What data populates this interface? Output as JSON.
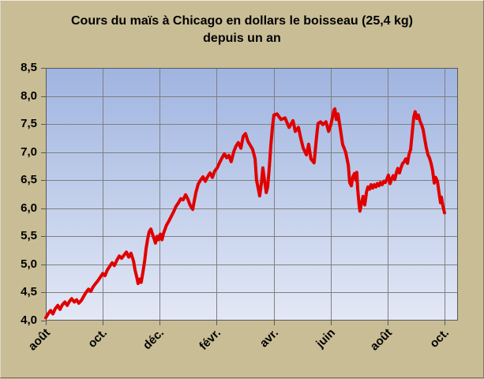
{
  "chart_data": {
    "type": "line",
    "title": "Cours du maïs à Chicago en dollars le boisseau (25,4 kg) depuis un an",
    "xlabel": "",
    "ylabel": "",
    "x_unit": "mois depuis le début (août = 0)",
    "xlim": [
      0,
      14.5
    ],
    "ylim": [
      4.0,
      8.5
    ],
    "grid": true,
    "legend": "none",
    "x_ticks": {
      "positions": [
        0,
        2,
        4,
        6,
        8,
        10,
        12,
        14
      ],
      "labels": [
        "août",
        "oct.",
        "déc.",
        "févr.",
        "avr.",
        "juin",
        "août",
        "oct."
      ]
    },
    "y_ticks": {
      "positions": [
        8.5,
        8.0,
        7.5,
        7.0,
        6.5,
        6.0,
        5.5,
        5.0,
        4.5,
        4.0
      ],
      "labels": [
        "8,5",
        "8,0",
        "7,5",
        "7,0",
        "6,5",
        "6,0",
        "5,5",
        "5,0",
        "4,5",
        "4,0"
      ]
    },
    "colors": {
      "background": "#c9bd96",
      "plot_gradient_top": "#9fb4e0",
      "plot_gradient_bottom": "#e3e8f5",
      "gridline": "#7f7f7f",
      "plot_border": "#595959",
      "line": "#e00000",
      "text": "#000000"
    },
    "series": [
      {
        "color": "#e00000",
        "points": [
          [
            0.0,
            4.05
          ],
          [
            0.08,
            4.12
          ],
          [
            0.17,
            4.18
          ],
          [
            0.25,
            4.12
          ],
          [
            0.33,
            4.21
          ],
          [
            0.42,
            4.27
          ],
          [
            0.5,
            4.2
          ],
          [
            0.58,
            4.28
          ],
          [
            0.67,
            4.33
          ],
          [
            0.75,
            4.27
          ],
          [
            0.83,
            4.34
          ],
          [
            0.91,
            4.39
          ],
          [
            1.0,
            4.33
          ],
          [
            1.08,
            4.37
          ],
          [
            1.16,
            4.31
          ],
          [
            1.25,
            4.36
          ],
          [
            1.33,
            4.43
          ],
          [
            1.41,
            4.5
          ],
          [
            1.5,
            4.56
          ],
          [
            1.58,
            4.52
          ],
          [
            1.66,
            4.6
          ],
          [
            1.75,
            4.66
          ],
          [
            1.83,
            4.71
          ],
          [
            1.91,
            4.77
          ],
          [
            2.0,
            4.84
          ],
          [
            2.08,
            4.8
          ],
          [
            2.16,
            4.9
          ],
          [
            2.25,
            4.97
          ],
          [
            2.33,
            5.03
          ],
          [
            2.41,
            4.98
          ],
          [
            2.5,
            5.08
          ],
          [
            2.58,
            5.15
          ],
          [
            2.66,
            5.11
          ],
          [
            2.74,
            5.16
          ],
          [
            2.83,
            5.22
          ],
          [
            2.91,
            5.13
          ],
          [
            2.99,
            5.2
          ],
          [
            3.08,
            5.06
          ],
          [
            3.13,
            4.91
          ],
          [
            3.19,
            4.78
          ],
          [
            3.24,
            4.66
          ],
          [
            3.3,
            4.74
          ],
          [
            3.35,
            4.68
          ],
          [
            3.41,
            4.86
          ],
          [
            3.47,
            5.06
          ],
          [
            3.52,
            5.28
          ],
          [
            3.58,
            5.46
          ],
          [
            3.63,
            5.58
          ],
          [
            3.69,
            5.63
          ],
          [
            3.74,
            5.55
          ],
          [
            3.8,
            5.46
          ],
          [
            3.85,
            5.38
          ],
          [
            3.91,
            5.5
          ],
          [
            3.96,
            5.44
          ],
          [
            4.02,
            5.54
          ],
          [
            4.08,
            5.44
          ],
          [
            4.13,
            5.55
          ],
          [
            4.19,
            5.63
          ],
          [
            4.24,
            5.7
          ],
          [
            4.33,
            5.78
          ],
          [
            4.41,
            5.86
          ],
          [
            4.49,
            5.94
          ],
          [
            4.57,
            6.03
          ],
          [
            4.66,
            6.1
          ],
          [
            4.74,
            6.17
          ],
          [
            4.82,
            6.15
          ],
          [
            4.91,
            6.24
          ],
          [
            4.99,
            6.16
          ],
          [
            5.07,
            6.05
          ],
          [
            5.16,
            5.98
          ],
          [
            5.21,
            6.12
          ],
          [
            5.27,
            6.28
          ],
          [
            5.35,
            6.43
          ],
          [
            5.43,
            6.5
          ],
          [
            5.52,
            6.56
          ],
          [
            5.6,
            6.48
          ],
          [
            5.68,
            6.56
          ],
          [
            5.77,
            6.63
          ],
          [
            5.85,
            6.55
          ],
          [
            5.93,
            6.66
          ],
          [
            6.02,
            6.72
          ],
          [
            6.1,
            6.81
          ],
          [
            6.18,
            6.89
          ],
          [
            6.27,
            6.97
          ],
          [
            6.35,
            6.9
          ],
          [
            6.43,
            6.94
          ],
          [
            6.51,
            6.83
          ],
          [
            6.6,
            7.01
          ],
          [
            6.68,
            7.11
          ],
          [
            6.76,
            7.17
          ],
          [
            6.85,
            7.07
          ],
          [
            6.93,
            7.28
          ],
          [
            7.01,
            7.33
          ],
          [
            7.1,
            7.19
          ],
          [
            7.18,
            7.12
          ],
          [
            7.26,
            7.05
          ],
          [
            7.35,
            6.88
          ],
          [
            7.4,
            6.5
          ],
          [
            7.46,
            6.35
          ],
          [
            7.51,
            6.22
          ],
          [
            7.57,
            6.45
          ],
          [
            7.62,
            6.72
          ],
          [
            7.68,
            6.5
          ],
          [
            7.74,
            6.28
          ],
          [
            7.79,
            6.38
          ],
          [
            7.85,
            6.75
          ],
          [
            7.9,
            7.12
          ],
          [
            7.96,
            7.45
          ],
          [
            8.01,
            7.66
          ],
          [
            8.12,
            7.68
          ],
          [
            8.26,
            7.58
          ],
          [
            8.4,
            7.61
          ],
          [
            8.54,
            7.44
          ],
          [
            8.68,
            7.56
          ],
          [
            8.76,
            7.37
          ],
          [
            8.87,
            7.44
          ],
          [
            8.96,
            7.23
          ],
          [
            9.04,
            7.07
          ],
          [
            9.15,
            6.95
          ],
          [
            9.23,
            7.14
          ],
          [
            9.31,
            6.88
          ],
          [
            9.42,
            6.81
          ],
          [
            9.51,
            7.28
          ],
          [
            9.56,
            7.51
          ],
          [
            9.65,
            7.54
          ],
          [
            9.73,
            7.49
          ],
          [
            9.84,
            7.54
          ],
          [
            9.93,
            7.37
          ],
          [
            10.01,
            7.49
          ],
          [
            10.12,
            7.75
          ],
          [
            10.15,
            7.77
          ],
          [
            10.2,
            7.58
          ],
          [
            10.26,
            7.68
          ],
          [
            10.34,
            7.42
          ],
          [
            10.42,
            7.14
          ],
          [
            10.53,
            7.0
          ],
          [
            10.62,
            6.77
          ],
          [
            10.67,
            6.46
          ],
          [
            10.73,
            6.4
          ],
          [
            10.78,
            6.56
          ],
          [
            10.84,
            6.62
          ],
          [
            10.89,
            6.5
          ],
          [
            10.92,
            6.64
          ],
          [
            10.95,
            6.35
          ],
          [
            11.0,
            6.06
          ],
          [
            11.03,
            5.95
          ],
          [
            11.09,
            6.1
          ],
          [
            11.14,
            6.21
          ],
          [
            11.2,
            6.06
          ],
          [
            11.26,
            6.29
          ],
          [
            11.31,
            6.38
          ],
          [
            11.37,
            6.34
          ],
          [
            11.42,
            6.42
          ],
          [
            11.48,
            6.36
          ],
          [
            11.53,
            6.42
          ],
          [
            11.59,
            6.38
          ],
          [
            11.64,
            6.44
          ],
          [
            11.7,
            6.4
          ],
          [
            11.75,
            6.46
          ],
          [
            11.81,
            6.42
          ],
          [
            11.87,
            6.48
          ],
          [
            11.92,
            6.46
          ],
          [
            11.98,
            6.52
          ],
          [
            12.03,
            6.59
          ],
          [
            12.09,
            6.44
          ],
          [
            12.14,
            6.52
          ],
          [
            12.2,
            6.58
          ],
          [
            12.25,
            6.51
          ],
          [
            12.31,
            6.63
          ],
          [
            12.36,
            6.71
          ],
          [
            12.42,
            6.63
          ],
          [
            12.47,
            6.72
          ],
          [
            12.53,
            6.8
          ],
          [
            12.59,
            6.83
          ],
          [
            12.64,
            6.88
          ],
          [
            12.7,
            6.8
          ],
          [
            12.75,
            6.95
          ],
          [
            12.81,
            7.05
          ],
          [
            12.86,
            7.32
          ],
          [
            12.92,
            7.62
          ],
          [
            12.97,
            7.72
          ],
          [
            13.03,
            7.6
          ],
          [
            13.08,
            7.66
          ],
          [
            13.14,
            7.55
          ],
          [
            13.2,
            7.48
          ],
          [
            13.25,
            7.4
          ],
          [
            13.31,
            7.22
          ],
          [
            13.36,
            7.08
          ],
          [
            13.42,
            6.95
          ],
          [
            13.47,
            6.9
          ],
          [
            13.53,
            6.8
          ],
          [
            13.58,
            6.68
          ],
          [
            13.64,
            6.45
          ],
          [
            13.69,
            6.55
          ],
          [
            13.75,
            6.48
          ],
          [
            13.8,
            6.3
          ],
          [
            13.86,
            6.1
          ],
          [
            13.89,
            6.2
          ],
          [
            13.94,
            6.05
          ],
          [
            14.0,
            5.92
          ]
        ]
      }
    ]
  }
}
